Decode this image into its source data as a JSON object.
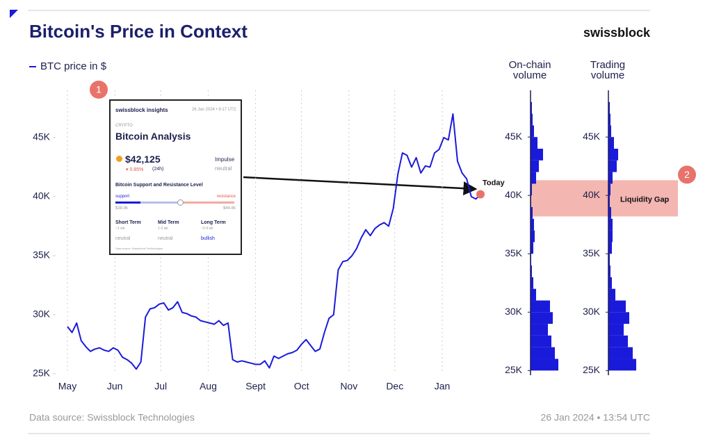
{
  "brand": "swissblock",
  "source": "Data source: Swissblock Technologies",
  "timestamp": "26 Jan 2024 • 13:54 UTC",
  "inset": {
    "badge": "1",
    "brand": "swissblock insights",
    "date": "26 Jan 2024 • 9:17 UTC",
    "kicker": "CRYPTO",
    "title": "Bitcoin Analysis",
    "price": "$42,125",
    "change": "▾ 0.85%",
    "period": "(24h)",
    "signal": "Impulse",
    "signal_state": "neutral",
    "section": "Bitcoin Support and Resistance Level",
    "support": "support",
    "resistance": "resistance",
    "support_level": "$38.9k",
    "resistance_level": "$44.6k",
    "terms": [
      {
        "name": "Short Term",
        "span": "~1 wk",
        "state": "neutral"
      },
      {
        "name": "Mid Term",
        "span": "1-2 wk",
        "state": "neutral"
      },
      {
        "name": "Long Term",
        "span": "~2-4 wk",
        "state": "bullish"
      }
    ],
    "source": "Data source: Swissblock Technologies"
  },
  "chart_data": [
    {
      "type": "line",
      "title": "Bitcoin's Price in Context",
      "series": [
        {
          "name": "BTC price in $",
          "color": "#1a1adb",
          "values": [
            29000,
            28500,
            29300,
            27800,
            27300,
            26900,
            27100,
            27200,
            27000,
            26900,
            27200,
            27000,
            26400,
            26200,
            25900,
            25400,
            26000,
            29800,
            30500,
            30600,
            30900,
            31000,
            30400,
            30600,
            31100,
            30200,
            30100,
            29900,
            29800,
            29500,
            29400,
            29300,
            29200,
            29500,
            29100,
            29300,
            26200,
            26000,
            26100,
            26000,
            25900,
            25800,
            25800,
            26100,
            25500,
            26500,
            26300,
            26500,
            26700,
            26800,
            27000,
            27500,
            27900,
            27400,
            26900,
            27100,
            28500,
            29700,
            30000,
            33800,
            34500,
            34600,
            35000,
            35600,
            36500,
            37200,
            36700,
            37300,
            37600,
            37800,
            37500,
            39000,
            41900,
            43700,
            43500,
            42500,
            43300,
            42000,
            42600,
            42500,
            43700,
            44000,
            45000,
            44800,
            47000,
            43000,
            42000,
            41500,
            40000,
            39800,
            40200
          ]
        }
      ],
      "xlim": [
        0,
        90
      ],
      "xticks": [
        {
          "value": 0,
          "label": "May"
        },
        {
          "value": 10.33,
          "label": "Jun"
        },
        {
          "value": 20.33,
          "label": "Jul"
        },
        {
          "value": 30.67,
          "label": "Aug"
        },
        {
          "value": 41,
          "label": "Sept"
        },
        {
          "value": 51,
          "label": "Oct"
        },
        {
          "value": 61.33,
          "label": "Nov"
        },
        {
          "value": 71.33,
          "label": "Dec"
        },
        {
          "value": 81.67,
          "label": "Jan"
        }
      ],
      "ylim": [
        25000,
        49000
      ],
      "yticks": [
        {
          "value": 25000,
          "label": "25K"
        },
        {
          "value": 30000,
          "label": "30K"
        },
        {
          "value": 35000,
          "label": "35K"
        },
        {
          "value": 40000,
          "label": "40K"
        },
        {
          "value": 45000,
          "label": "45K"
        }
      ],
      "grid": true,
      "annotation": {
        "label": "Today",
        "color": "#e8736b"
      }
    },
    {
      "type": "histogram",
      "title": "On-chain volume",
      "color": "#1a1adb",
      "bins": [
        25000,
        26000,
        27000,
        28000,
        29000,
        30000,
        31000,
        32000,
        33000,
        34000,
        35000,
        36000,
        37000,
        38000,
        39000,
        40000,
        41000,
        42000,
        43000,
        44000,
        45000,
        46000,
        47000,
        48000
      ],
      "values": [
        40,
        35,
        30,
        25,
        32,
        28,
        8,
        4,
        2,
        1,
        4,
        6,
        5,
        3,
        1,
        2,
        8,
        12,
        18,
        10,
        5,
        3,
        2
      ],
      "xlim": [
        0,
        50
      ],
      "ylim": [
        24600,
        49000
      ],
      "yticks": [
        {
          "value": 25000,
          "label": "25K"
        },
        {
          "value": 30000,
          "label": "30K"
        },
        {
          "value": 35000,
          "label": "35K"
        },
        {
          "value": 40000,
          "label": "40K"
        },
        {
          "value": 45000,
          "label": "45K"
        }
      ],
      "highlight": {
        "label": "Liquidity Gap",
        "badge": "2",
        "range": [
          38200,
          41300
        ],
        "color": "#f4b6b0"
      }
    },
    {
      "type": "histogram",
      "title": "Trading volume",
      "color": "#1a1adb",
      "bins": [
        25000,
        26000,
        27000,
        28000,
        29000,
        30000,
        31000,
        32000,
        33000,
        34000,
        35000,
        36000,
        37000,
        38000,
        39000,
        40000,
        41000,
        42000,
        43000,
        44000,
        45000,
        46000,
        47000,
        48000
      ],
      "values": [
        40,
        35,
        28,
        22,
        30,
        25,
        10,
        5,
        3,
        2,
        5,
        6,
        6,
        4,
        2,
        3,
        6,
        12,
        14,
        8,
        4,
        3,
        2
      ],
      "xlim": [
        0,
        50
      ],
      "ylim": [
        24600,
        49000
      ],
      "yticks": [
        {
          "value": 25000,
          "label": "25K"
        },
        {
          "value": 30000,
          "label": "30K"
        },
        {
          "value": 35000,
          "label": "35K"
        },
        {
          "value": 40000,
          "label": "40K"
        },
        {
          "value": 45000,
          "label": "45K"
        }
      ]
    }
  ]
}
